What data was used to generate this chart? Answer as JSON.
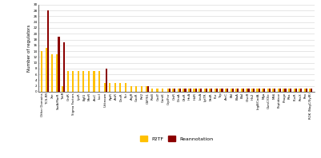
{
  "categories": [
    "Other Domains",
    "TCS-RR",
    "Xre",
    "SarA/MarR",
    "TetR",
    "GntR",
    "Sigma Factors",
    "LysR",
    "BglG",
    "MerR",
    "AraC",
    "LacI",
    "Unknown",
    "RpiR",
    "ArsR",
    "DeoR",
    "Fur",
    "ArgR",
    "CooR",
    "Rrf2",
    "CSP/S1",
    "RinB",
    "CodY",
    "ComK",
    "Crp/Fnr",
    "CtsR",
    "DnaA",
    "DtxR",
    "HrcA",
    "HxlR",
    "LexA",
    "LytTR",
    "NrdR",
    "Pur",
    "Trp",
    "ArcC",
    "BhI",
    "BlaA",
    "BlaI",
    "GlseR",
    "His2",
    "LrgA/CodA",
    "Mga",
    "OsmC/Ole",
    "MS6",
    "Peptidase",
    "Phage",
    "Rha",
    "PucR",
    "RecX",
    "Rex",
    "ROK (NagC/XylR)"
  ],
  "p2tf": [
    14,
    15,
    13,
    13,
    2,
    7,
    7,
    7,
    7,
    7,
    7,
    7,
    3,
    3,
    3,
    3,
    3,
    2,
    2,
    2,
    2,
    1,
    1,
    1,
    1,
    1,
    1,
    1,
    1,
    1,
    1,
    1,
    1,
    1,
    1,
    1,
    1,
    1,
    1,
    1,
    1,
    1,
    1,
    1,
    1,
    1,
    1,
    1,
    1,
    1,
    1,
    1
  ],
  "reannotation": [
    0,
    28,
    0,
    19,
    17,
    0,
    0,
    0,
    0,
    0,
    0,
    0,
    8,
    0,
    0,
    0,
    0,
    0,
    0,
    0,
    2,
    0,
    0,
    0,
    1,
    1,
    1,
    1,
    1,
    1,
    1,
    1,
    1,
    1,
    1,
    1,
    1,
    1,
    1,
    1,
    1,
    1,
    1,
    1,
    1,
    1,
    1,
    1,
    1,
    1,
    1,
    1
  ],
  "color_p2tf": "#FFC000",
  "color_reannotation": "#8B0000",
  "ylabel": "Number of regulators",
  "yticks": [
    0,
    2,
    4,
    6,
    8,
    10,
    12,
    14,
    16,
    18,
    20,
    22,
    24,
    26,
    28,
    30
  ],
  "legend_p2tf": "P2TF",
  "legend_reannotation": "Reannotation"
}
